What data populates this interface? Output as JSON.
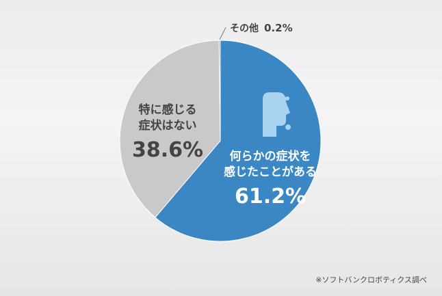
{
  "chart_data": {
    "type": "pie",
    "categories": [
      "何らかの症状を\n感じたことがある",
      "特に感じる\n症状はない",
      "その他"
    ],
    "values": [
      61.2,
      38.6,
      0.2
    ],
    "value_labels": [
      "61.2%",
      "38.6%",
      "0.2%"
    ],
    "colors": [
      "#3a87c4",
      "#c9c9c9",
      "#8a8a8a"
    ],
    "source": "※ソフトバンクロボティクス調べ"
  }
}
